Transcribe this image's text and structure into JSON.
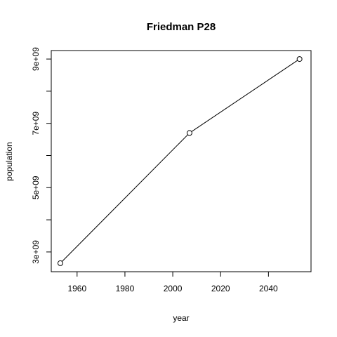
{
  "chart_data": {
    "type": "line",
    "title": "Friedman P28",
    "xlabel": "year",
    "ylabel": "population",
    "x": [
      1953,
      2007,
      2053
    ],
    "series": [
      {
        "values": [
          2650000000,
          6700000000,
          9000000000
        ]
      }
    ],
    "xlim": [
      1949.2,
      2057.8
    ],
    "ylim": [
      2386000000,
      9264000000
    ],
    "xticks": [
      1960,
      1980,
      2000,
      2020,
      2040
    ],
    "xtick_labels": [
      "1960",
      "1980",
      "2000",
      "2020",
      "2040"
    ],
    "yticks": [
      3000000000,
      4000000000,
      5000000000,
      6000000000,
      7000000000,
      8000000000,
      9000000000
    ],
    "ytick_labels": [
      "3e+09",
      "",
      "5e+09",
      "",
      "7e+09",
      "",
      "9e+09"
    ],
    "markers": "open-circle",
    "line_color": "#000000",
    "grid": false,
    "legend": "none"
  }
}
